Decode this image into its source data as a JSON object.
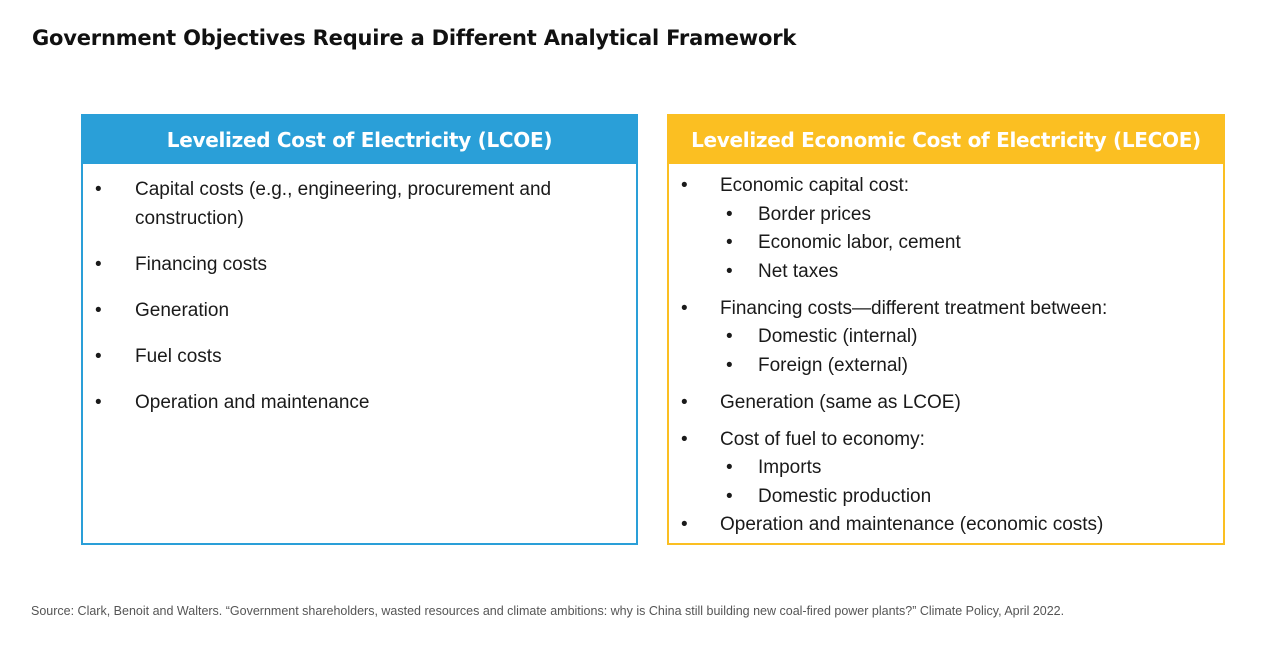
{
  "title": "Government Objectives Require a Different Analytical Framework",
  "bullet": "•",
  "left_panel": {
    "header": "Levelized Cost of Electricity (LCOE)",
    "color": "#2a9fd8",
    "items": [
      "Capital costs (e.g., engineering, procurement and construction)",
      "Financing costs",
      "Generation",
      "Fuel costs",
      "Operation and maintenance"
    ]
  },
  "right_panel": {
    "header": "Levelized Economic Cost of Electricity (LECOE)",
    "color": "#fbbf22",
    "items": [
      {
        "text": "Economic capital cost:",
        "sub": [
          "Border prices",
          "Economic labor, cement",
          "Net taxes"
        ]
      },
      {
        "text": "Financing costs—different treatment between:",
        "sub": [
          "Domestic (internal)",
          "Foreign (external)"
        ]
      },
      {
        "text": "Generation (same as LCOE)",
        "sub": []
      },
      {
        "text": "Cost of fuel to economy:",
        "sub": [
          "Imports",
          "Domestic production"
        ]
      },
      {
        "text": "Operation and maintenance (economic costs)",
        "sub": []
      }
    ]
  },
  "source": "Source: Clark, Benoit and Walters. “Government shareholders, wasted resources and climate ambitions: why is China still building new coal-fired power plants?” Climate Policy, April 2022."
}
